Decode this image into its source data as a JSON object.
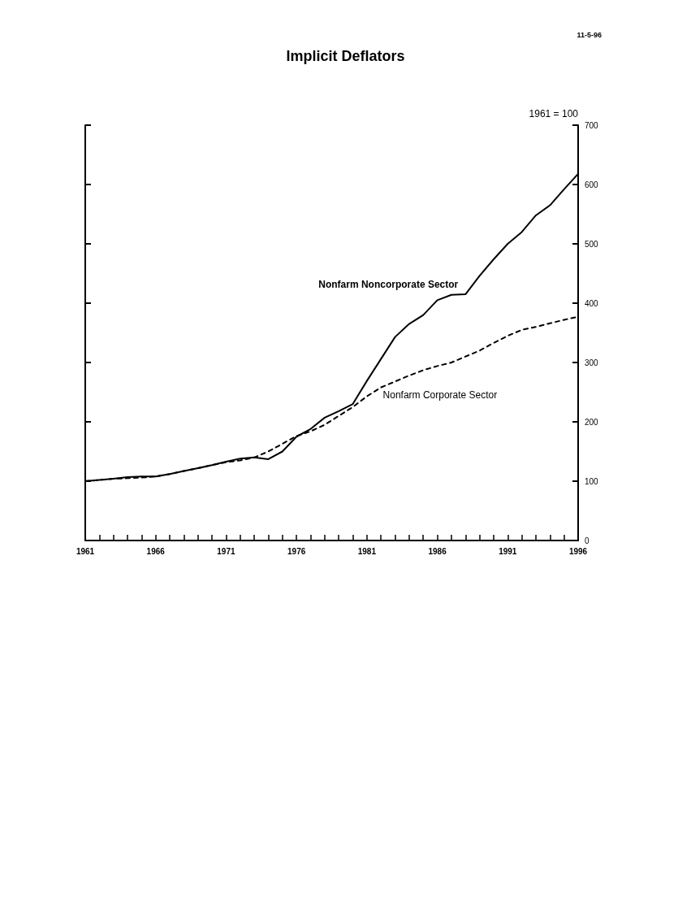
{
  "chart_data": {
    "type": "line",
    "title": "Implicit Deflators",
    "ylabel": "1961 = 100",
    "annotations": [
      "11-5-96"
    ],
    "x": [
      1961,
      1962,
      1963,
      1964,
      1965,
      1966,
      1967,
      1968,
      1969,
      1970,
      1971,
      1972,
      1973,
      1974,
      1975,
      1976,
      1977,
      1978,
      1979,
      1980,
      1981,
      1982,
      1983,
      1984,
      1985,
      1986,
      1987,
      1988,
      1989,
      1990,
      1991,
      1992,
      1993,
      1994,
      1995,
      1996
    ],
    "series": [
      {
        "name": "Nonfarm Noncorporate Sector",
        "color": "#000000",
        "line_style": "solid",
        "values": [
          100,
          102,
          104,
          107,
          108,
          108,
          112,
          117,
          122,
          127,
          133,
          138,
          140,
          137,
          150,
          175,
          188,
          207,
          218,
          230,
          269,
          306,
          343,
          365,
          380,
          405,
          414,
          415,
          446,
          474,
          500,
          520,
          548,
          565,
          592,
          618
        ]
      },
      {
        "name": "Nonfarm Corporate Sector",
        "color": "#000000",
        "line_style": "dashed",
        "values": [
          100,
          102,
          104,
          105,
          106,
          108,
          112,
          117,
          122,
          127,
          132,
          135,
          140,
          150,
          163,
          176,
          184,
          195,
          210,
          225,
          243,
          258,
          268,
          278,
          287,
          294,
          300,
          310,
          320,
          333,
          345,
          355,
          360,
          366,
          372,
          377
        ]
      }
    ],
    "xlim": [
      1961,
      1996
    ],
    "xticks": [
      1961,
      {
        "value": 1962,
        "label": null
      },
      {
        "value": 1963,
        "label": null
      },
      {
        "value": 1964,
        "label": null
      },
      {
        "value": 1965,
        "label": null
      },
      1966,
      {
        "value": 1967,
        "label": null
      },
      {
        "value": 1968,
        "label": null
      },
      {
        "value": 1969,
        "label": null
      },
      {
        "value": 1970,
        "label": null
      },
      1971,
      {
        "value": 1972,
        "label": null
      },
      {
        "value": 1973,
        "label": null
      },
      {
        "value": 1974,
        "label": null
      },
      {
        "value": 1975,
        "label": null
      },
      1976,
      {
        "value": 1977,
        "label": null
      },
      {
        "value": 1978,
        "label": null
      },
      {
        "value": 1979,
        "label": null
      },
      {
        "value": 1980,
        "label": null
      },
      1981,
      {
        "value": 1982,
        "label": null
      },
      {
        "value": 1983,
        "label": null
      },
      {
        "value": 1984,
        "label": null
      },
      {
        "value": 1985,
        "label": null
      },
      1986,
      {
        "value": 1987,
        "label": null
      },
      {
        "value": 1988,
        "label": null
      },
      {
        "value": 1989,
        "label": null
      },
      {
        "value": 1990,
        "label": null
      },
      1991,
      {
        "value": 1992,
        "label": null
      },
      {
        "value": 1993,
        "label": null
      },
      {
        "value": 1994,
        "label": null
      },
      {
        "value": 1995,
        "label": null
      },
      1996
    ],
    "ylim": [
      0,
      700
    ],
    "yticks": [
      0,
      100,
      200,
      300,
      400,
      500,
      600,
      700
    ],
    "grid": false,
    "legend": false,
    "marker": "none"
  }
}
